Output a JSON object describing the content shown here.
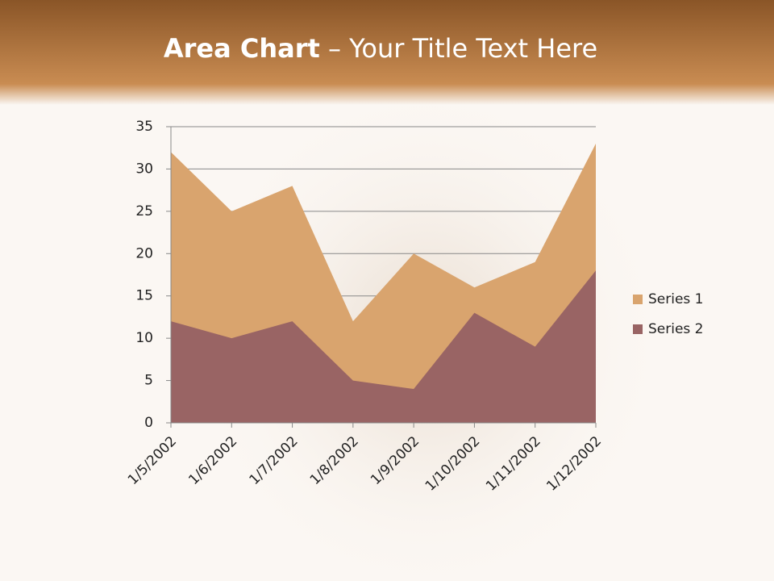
{
  "chart_data": {
    "type": "area",
    "title": {
      "bold": "Area Chart",
      "rest": "– Your Title Text Here"
    },
    "categories": [
      "1/5/2002",
      "1/6/2002",
      "1/7/2002",
      "1/8/2002",
      "1/9/2002",
      "1/10/2002",
      "1/11/2002",
      "1/12/2002"
    ],
    "series": [
      {
        "name": "Series 1",
        "color": "#d9a46e",
        "values": [
          32,
          25,
          28,
          12,
          20,
          16,
          19,
          33
        ]
      },
      {
        "name": "Series 2",
        "color": "#996464",
        "values": [
          12,
          10,
          12,
          5,
          4,
          13,
          9,
          18
        ]
      }
    ],
    "ylim": [
      0,
      35
    ],
    "yticks": [
      0,
      5,
      10,
      15,
      20,
      25,
      30,
      35
    ],
    "grid": true,
    "legend": "right"
  }
}
